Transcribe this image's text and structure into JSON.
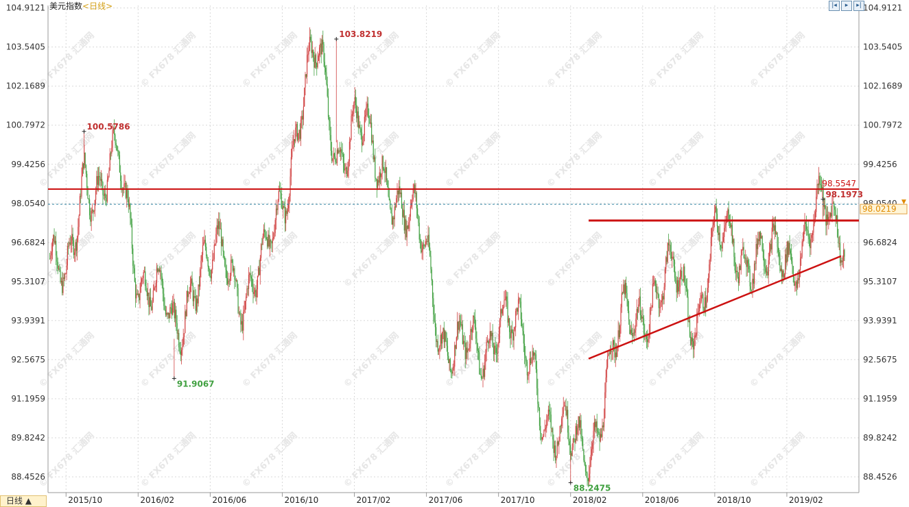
{
  "header": {
    "title": "美元指数",
    "period": "<日线>"
  },
  "toolbar": {
    "buttons": [
      "zoom-out-icon",
      "play-icon",
      "zoom-in-icon"
    ]
  },
  "timeframe": {
    "label": "日线 ▲"
  },
  "colors": {
    "up": "#d04040",
    "down": "#40a040",
    "resistance": "#cc1111",
    "current_line": "#2a7f9f",
    "grid": "#d8d8d8",
    "current_badge_bg": "#fff5d8",
    "current_badge_border": "#e0a040",
    "current_badge_text": "#e08a00",
    "high_label": "#c03030",
    "low_label": "#40a040"
  },
  "chart_data": {
    "type": "candlestick",
    "ylim": [
      87.9,
      105.0
    ],
    "y_ticks": [
      "104.9121",
      "103.5405",
      "102.1689",
      "100.7972",
      "99.4256",
      "98.0540",
      "96.6824",
      "95.3107",
      "93.9391",
      "92.5675",
      "91.1959",
      "89.8242",
      "88.4526"
    ],
    "x_ticks": [
      "2015/10",
      "2016/02",
      "2016/06",
      "2016/10",
      "2017/02",
      "2017/06",
      "2017/10",
      "2018/02",
      "2018/06",
      "2018/10",
      "2019/02"
    ],
    "x_ticks_start": "2015/10",
    "x_ticks_interval_months": 4,
    "x_range_months": [
      -1.0,
      44.0
    ],
    "approx_path": [
      {
        "date": "2015/09",
        "value": 96.3
      },
      {
        "date": "2015/10",
        "value": 94.5
      },
      {
        "date": "2015/11",
        "value": 99.8
      },
      {
        "date": "2015/12",
        "value": 98.2
      },
      {
        "date": "2016/01",
        "value": 99.3
      },
      {
        "date": "2016/02",
        "value": 96.0
      },
      {
        "date": "2016/03",
        "value": 94.7
      },
      {
        "date": "2016/04",
        "value": 93.3
      },
      {
        "date": "2016/05",
        "value": 95.8
      },
      {
        "date": "2016/06",
        "value": 95.5
      },
      {
        "date": "2016/07",
        "value": 96.2
      },
      {
        "date": "2016/08",
        "value": 95.0
      },
      {
        "date": "2016/09",
        "value": 95.4
      },
      {
        "date": "2016/10",
        "value": 98.5
      },
      {
        "date": "2016/11",
        "value": 101.5
      },
      {
        "date": "2016/12",
        "value": 103.0
      },
      {
        "date": "2017/01",
        "value": 100.2
      },
      {
        "date": "2017/02",
        "value": 100.8
      },
      {
        "date": "2017/03",
        "value": 99.5
      },
      {
        "date": "2017/04",
        "value": 99.2
      },
      {
        "date": "2017/05",
        "value": 97.3
      },
      {
        "date": "2017/06",
        "value": 96.2
      },
      {
        "date": "2017/07",
        "value": 93.5
      },
      {
        "date": "2017/08",
        "value": 92.5
      },
      {
        "date": "2017/09",
        "value": 92.8
      },
      {
        "date": "2017/10",
        "value": 94.5
      },
      {
        "date": "2017/11",
        "value": 93.0
      },
      {
        "date": "2017/12",
        "value": 92.5
      },
      {
        "date": "2018/01",
        "value": 90.0
      },
      {
        "date": "2018/02",
        "value": 89.3
      },
      {
        "date": "2018/03",
        "value": 89.8
      },
      {
        "date": "2018/04",
        "value": 91.5
      },
      {
        "date": "2018/05",
        "value": 93.8
      },
      {
        "date": "2018/06",
        "value": 94.8
      },
      {
        "date": "2018/07",
        "value": 94.6
      },
      {
        "date": "2018/08",
        "value": 95.5
      },
      {
        "date": "2018/09",
        "value": 94.3
      },
      {
        "date": "2018/10",
        "value": 96.3
      },
      {
        "date": "2018/11",
        "value": 96.8
      },
      {
        "date": "2018/12",
        "value": 96.5
      },
      {
        "date": "2019/01",
        "value": 95.5
      },
      {
        "date": "2019/02",
        "value": 96.5
      },
      {
        "date": "2019/03",
        "value": 96.8
      },
      {
        "date": "2019/04",
        "value": 97.5
      }
    ],
    "annotations": [
      {
        "label": "100.5786",
        "date": "2015/11",
        "value": 100.5786,
        "kind": "high"
      },
      {
        "label": "91.9067",
        "date": "2016/04",
        "value": 91.9067,
        "kind": "low"
      },
      {
        "label": "103.8219",
        "date": "2017/01",
        "value": 103.8219,
        "kind": "high"
      },
      {
        "label": "88.2475",
        "date": "2018/02",
        "value": 88.2475,
        "kind": "low"
      },
      {
        "label": "98.1973",
        "date": "2019/04",
        "value": 98.1973,
        "kind": "high"
      }
    ],
    "horizontal_lines": [
      {
        "label": "98.5547",
        "value": 98.5547,
        "style": "solid"
      },
      {
        "label": "98.0219",
        "value": 98.0219,
        "style": "dashed"
      }
    ],
    "drawn_lines": [
      {
        "name": "resistance",
        "points": [
          {
            "date": "2018/03",
            "value": 97.45
          },
          {
            "date": "2019/06",
            "value": 97.45
          }
        ]
      },
      {
        "name": "support-trendline",
        "points": [
          {
            "date": "2018/03",
            "value": 92.6
          },
          {
            "date": "2019/05",
            "value": 96.2
          }
        ]
      }
    ],
    "watermark": "© FX678 汇通网"
  }
}
